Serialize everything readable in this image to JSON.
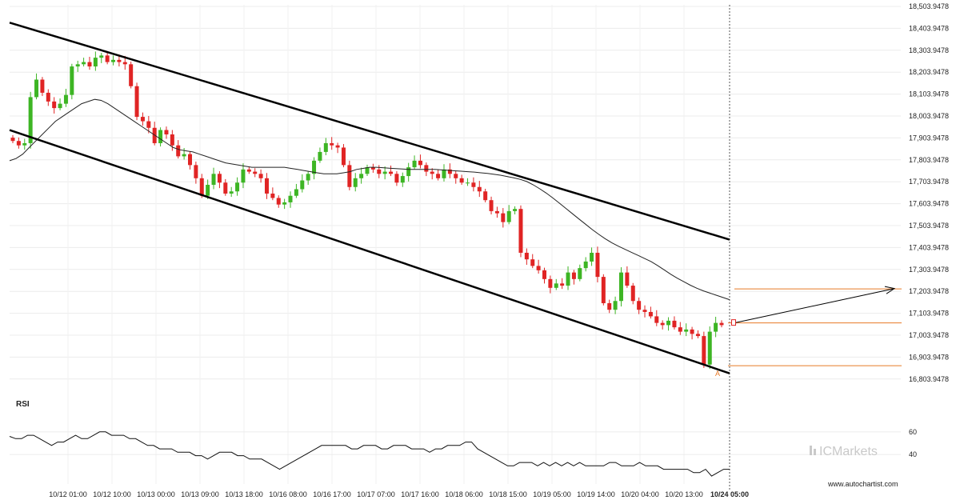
{
  "chart_data": {
    "type": "candlestick",
    "title": "",
    "y_ticks": [
      "18,503.9478",
      "18,403.9478",
      "18,303.9478",
      "18,203.9478",
      "18,103.9478",
      "18,003.9478",
      "17,903.9478",
      "17,803.9478",
      "17,703.9478",
      "17,603.9478",
      "17,503.9478",
      "17,403.9478",
      "17,303.9478",
      "17,203.9478",
      "17,103.9478",
      "17,003.9478",
      "16,903.9478",
      "16,803.9478"
    ],
    "y_tick_values": [
      18503.9478,
      18403.9478,
      18303.9478,
      18203.9478,
      18103.9478,
      18003.9478,
      17903.9478,
      17803.9478,
      17703.9478,
      17603.9478,
      17503.9478,
      17403.9478,
      17303.9478,
      17203.9478,
      17103.9478,
      17003.9478,
      16903.9478,
      16803.9478
    ],
    "x_ticks": [
      "10/12 01:00",
      "10/12 10:00",
      "10/13 00:00",
      "10/13 09:00",
      "10/13 18:00",
      "10/16 08:00",
      "10/16 17:00",
      "10/17 07:00",
      "10/17 16:00",
      "10/18 06:00",
      "10/18 15:00",
      "10/19 05:00",
      "10/19 14:00",
      "10/20 04:00",
      "10/20 13:00",
      "10/24 05:00"
    ],
    "closes": [
      17890,
      17870,
      17880,
      18090,
      18170,
      18110,
      18070,
      18040,
      18060,
      18100,
      18230,
      18240,
      18250,
      18230,
      18270,
      18280,
      18250,
      18260,
      18250,
      18240,
      18140,
      18000,
      17980,
      17950,
      17880,
      17940,
      17920,
      17870,
      17820,
      17830,
      17780,
      17720,
      17640,
      17690,
      17740,
      17700,
      17650,
      17660,
      17700,
      17760,
      17750,
      17740,
      17720,
      17650,
      17630,
      17600,
      17610,
      17640,
      17670,
      17710,
      17740,
      17800,
      17840,
      17880,
      17870,
      17860,
      17780,
      17680,
      17720,
      17740,
      17770,
      17760,
      17740,
      17750,
      17740,
      17700,
      17730,
      17770,
      17800,
      17780,
      17750,
      17740,
      17720,
      17760,
      17740,
      17720,
      17700,
      17700,
      17680,
      17660,
      17620,
      17570,
      17560,
      17520,
      17570,
      17580,
      17380,
      17350,
      17320,
      17300,
      17260,
      17220,
      17240,
      17230,
      17290,
      17260,
      17310,
      17340,
      17380,
      17270,
      17150,
      17120,
      17160,
      17290,
      17230,
      17160,
      17120,
      17110,
      17090,
      17060,
      17050,
      17070,
      17040,
      17020,
      17030,
      17010,
      17000,
      16870,
      17020,
      17060,
      17050
    ],
    "ma": [
      17800,
      17810,
      17830,
      17860,
      17890,
      17920,
      17950,
      17980,
      18000,
      18020,
      18040,
      18060,
      18070,
      18080,
      18075,
      18060,
      18040,
      18020,
      18000,
      17980,
      17960,
      17940,
      17920,
      17900,
      17880,
      17860,
      17850,
      17845,
      17840,
      17830,
      17820,
      17810,
      17800,
      17790,
      17785,
      17780,
      17775,
      17770,
      17770,
      17770,
      17770,
      17770,
      17770,
      17765,
      17760,
      17755,
      17750,
      17745,
      17740,
      17740,
      17740,
      17745,
      17750,
      17760,
      17765,
      17770,
      17770,
      17768,
      17766,
      17764,
      17762,
      17760,
      17760,
      17760,
      17760,
      17760,
      17758,
      17756,
      17754,
      17752,
      17750,
      17748,
      17745,
      17742,
      17738,
      17734,
      17728,
      17722,
      17715,
      17705,
      17690,
      17672,
      17652,
      17630,
      17606,
      17582,
      17558,
      17534,
      17510,
      17486,
      17464,
      17444,
      17426,
      17410,
      17396,
      17382,
      17368,
      17354,
      17340,
      17322,
      17302,
      17282,
      17264,
      17248,
      17232,
      17218,
      17206,
      17196,
      17186,
      17176,
      17166
    ],
    "channel_upper": {
      "from": [
        "10/11 19:00",
        18430
      ],
      "to": [
        "10/24 04:00",
        17440
      ]
    },
    "channel_lower": {
      "from": [
        "10/11 19:00",
        17940
      ],
      "to": [
        "10/24 04:00",
        16830
      ]
    },
    "projection": {
      "from": 17060,
      "to": 17215
    },
    "levels": [
      17215,
      17060,
      16865
    ],
    "marker": "A",
    "rsi": {
      "label": "RSI",
      "y_ticks": [
        "60",
        "40"
      ],
      "y_tick_values": [
        60,
        40
      ],
      "values": [
        56,
        54,
        54,
        57,
        57,
        54,
        51,
        48,
        51,
        51,
        54,
        57,
        54,
        54,
        57,
        60,
        60,
        57,
        57,
        57,
        54,
        54,
        51,
        48,
        48,
        45,
        45,
        45,
        42,
        42,
        42,
        39,
        39,
        36,
        39,
        42,
        42,
        42,
        39,
        39,
        36,
        36,
        36,
        33,
        30,
        27,
        30,
        33,
        36,
        39,
        42,
        45,
        48,
        48,
        48,
        48,
        48,
        45,
        45,
        48,
        48,
        48,
        45,
        45,
        48,
        48,
        48,
        45,
        45,
        45,
        42,
        45,
        45,
        48,
        48,
        48,
        51,
        51,
        45,
        42,
        39,
        36,
        33,
        30,
        30,
        33,
        33,
        33,
        30,
        33,
        30,
        33,
        30,
        33,
        30,
        33,
        30,
        30,
        30,
        30,
        33,
        33,
        30,
        30,
        30,
        33,
        30,
        30,
        30,
        27,
        27,
        27,
        27,
        27,
        24,
        24,
        27,
        21,
        24,
        27,
        27
      ],
      "ylim": [
        14,
        74
      ]
    },
    "watermark": "ICMarkets",
    "source_url": "www.autochartist.com",
    "colors": {
      "up": "#3db524",
      "down": "#e02424",
      "channel": "#000000",
      "ma": "#222222",
      "level": "#e87a26",
      "text": "#222222"
    }
  }
}
